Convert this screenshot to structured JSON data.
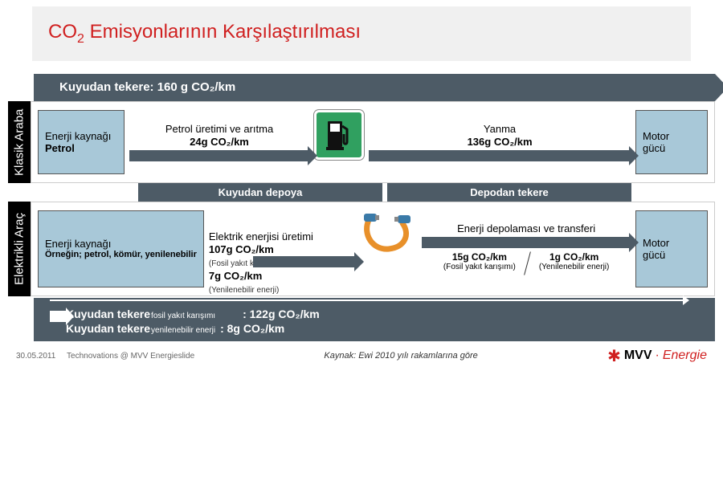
{
  "title_html": "CO<sub>2</sub> Emisyonlarının Karşılaştırılması",
  "top_arrow": "Kuyudan tekere: 160 g CO₂/km",
  "rows": {
    "classic": {
      "vlabel": "Klasik Araba",
      "source_l1": "Enerji kaynağı",
      "source_l2": "Petrol",
      "step1_l1": "Petrol üretimi ve arıtma",
      "step1_l2": "24g CO₂/km",
      "step2_l1": "Yanma",
      "step2_l2": "136g CO₂/km",
      "out_l1": "Motor",
      "out_l2": "gücü"
    },
    "ev": {
      "vlabel": "Elektrikli Araç",
      "source_l1": "Enerji kaynağı",
      "source_l2": "Örneğin; petrol, kömür, yenilenebilir",
      "step1_l1": "Elektrik enerjisi üretimi",
      "step1_v1": "107g CO₂/km",
      "step1_s1": "(Fosil yakıt karışımı)",
      "step1_v2": "7g CO₂/km",
      "step1_s2": "(Yenilenebilir enerji)",
      "step2_title": "Enerji depolaması ve transferi",
      "step2_v1": "15g CO₂/km",
      "step2_s1": "(Fosil yakıt karışımı)",
      "step2_v2": "1g CO₂/km",
      "step2_s2": "(Yenilenebilir enerji)",
      "out_l1": "Motor",
      "out_l2": "gücü"
    }
  },
  "midbar": {
    "left": "Kuyudan depoya",
    "right": "Depodan tekere"
  },
  "bottom": {
    "line1_label": "Kuyudan tekere",
    "line1_sub": "fosil yakıt karışımı",
    "line1_val": ": 122g CO₂/km",
    "line2_label": "Kuyudan tekere",
    "line2_sub": "yenilenebilir enerji",
    "line2_val": ": 8g CO₂/km"
  },
  "footer": {
    "date": "30.05.2011",
    "note": "Technovations @ MVV Energieslide",
    "source": "Kaynak: Ewi 2010 yılı rakamlarına göre",
    "logo_mvv": "MVV",
    "logo_eng": "Energie"
  },
  "colors": {
    "bar": "#4d5b66",
    "box": "#a8c8d8",
    "title": "#d02020",
    "pump_bg": "#30a060"
  }
}
